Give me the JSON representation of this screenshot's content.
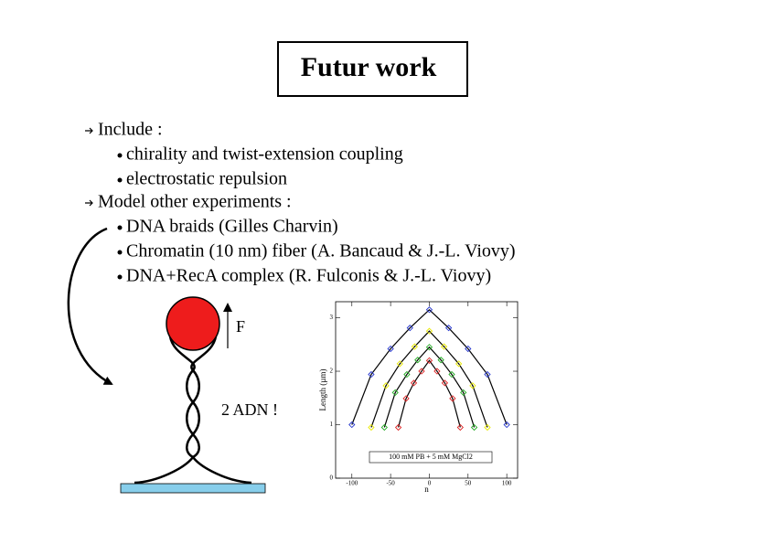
{
  "title": "Futur work",
  "items": [
    {
      "text": "Include :",
      "subitems": [
        "chirality and twist-extension coupling",
        "electrostatic repulsion"
      ]
    },
    {
      "text": "Model other experiments :",
      "subitems": [
        "DNA braids (Gilles Charvin)",
        "Chromatin (10 nm) fiber (A. Bancaud & J.-L. Viovy)",
        "DNA+RecA complex (R. Fulconis & J.-L. Viovy)"
      ]
    }
  ],
  "diagram": {
    "force_label": "F",
    "caption": "2 ADN !"
  },
  "chart_data": {
    "type": "scatter",
    "xlabel": "n",
    "ylabel": "Length (µm)",
    "annotation": "100 mM PB + 5 mM MgCl2",
    "xlim": [
      -121,
      114
    ],
    "ylim": [
      0,
      3.3
    ],
    "xticks": [
      -100,
      -50,
      0,
      50,
      100
    ],
    "yticks": [
      0,
      1,
      2,
      3
    ],
    "series": [
      {
        "color": "#2233cc",
        "x": [
          -100,
          -75,
          -50,
          -25,
          0,
          25,
          50,
          75,
          100
        ],
        "values": [
          1.0,
          1.94,
          2.42,
          2.81,
          3.15,
          2.81,
          2.42,
          1.94,
          1.0
        ]
      },
      {
        "color": "#e8e800",
        "x": [
          -75,
          -56,
          -38,
          -19,
          0,
          19,
          38,
          56,
          75
        ],
        "values": [
          0.95,
          1.73,
          2.14,
          2.46,
          2.75,
          2.46,
          2.14,
          1.73,
          0.95
        ]
      },
      {
        "color": "#22aa22",
        "x": [
          -58,
          -44,
          -29,
          -15,
          0,
          15,
          29,
          44,
          58
        ],
        "values": [
          0.95,
          1.6,
          1.94,
          2.21,
          2.45,
          2.21,
          1.94,
          1.6,
          0.95
        ]
      },
      {
        "color": "#dd2222",
        "x": [
          -40,
          -30,
          -20,
          -10,
          0,
          10,
          20,
          30,
          40
        ],
        "values": [
          0.95,
          1.49,
          1.78,
          2.0,
          2.2,
          2.0,
          1.78,
          1.49,
          0.95
        ]
      }
    ]
  }
}
